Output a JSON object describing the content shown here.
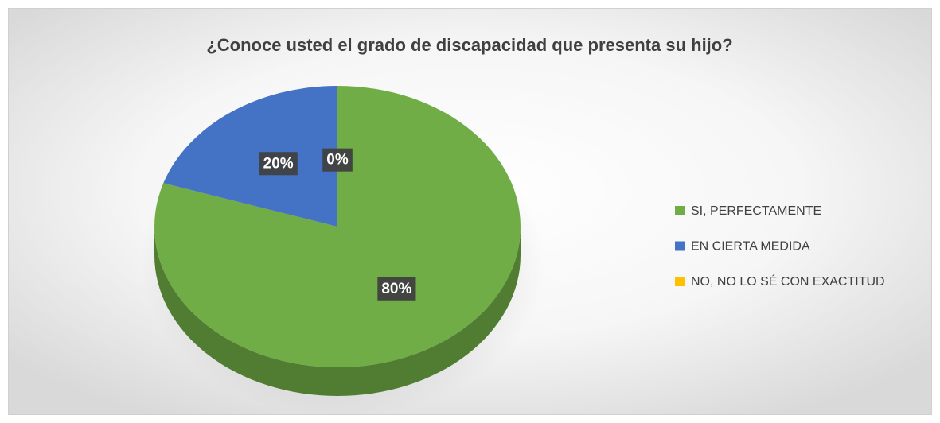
{
  "chart_data": {
    "type": "pie",
    "title": "¿Conoce usted el grado de discapacidad que presenta su hijo?",
    "categories": [
      "SI, PERFECTAMENTE",
      "EN CIERTA MEDIDA",
      "NO, NO LO SÉ CON EXACTITUD"
    ],
    "values": [
      80,
      20,
      0
    ],
    "value_labels": [
      "80%",
      "20%",
      "0%"
    ],
    "colors": [
      "#70ad47",
      "#4472c4",
      "#ffc000"
    ],
    "legend": "right"
  }
}
